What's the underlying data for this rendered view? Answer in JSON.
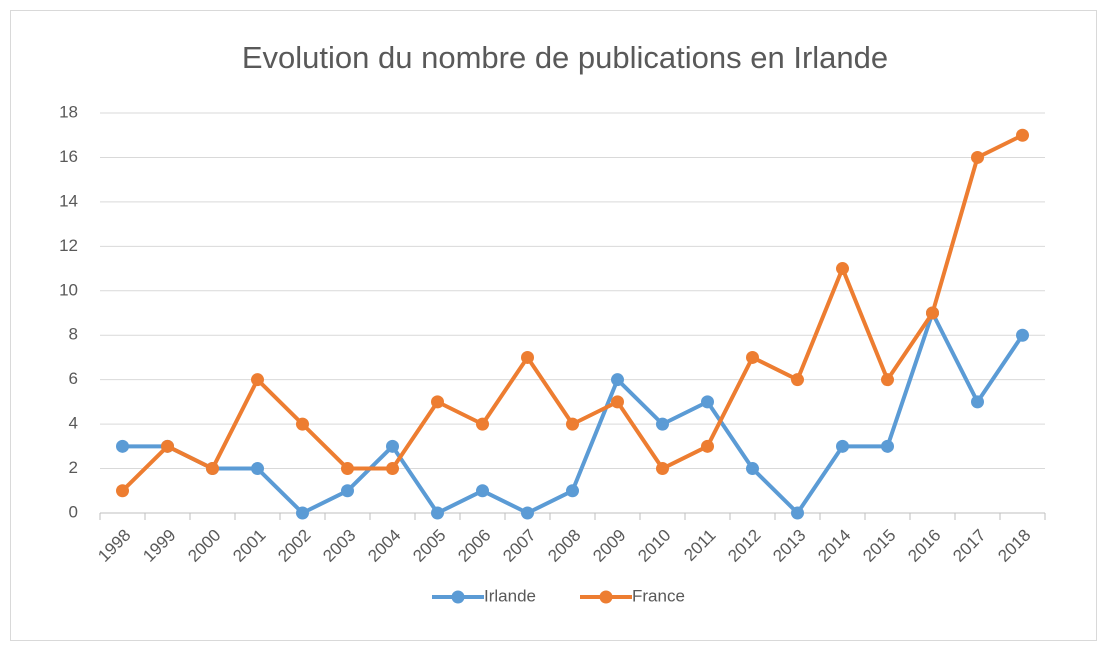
{
  "chart_data": {
    "type": "line",
    "title": "Evolution du nombre de publications en Irlande",
    "categories": [
      "1998",
      "1999",
      "2000",
      "2001",
      "2002",
      "2003",
      "2004",
      "2005",
      "2006",
      "2007",
      "2008",
      "2009",
      "2010",
      "2011",
      "2012",
      "2013",
      "2014",
      "2015",
      "2016",
      "2017",
      "2018"
    ],
    "series": [
      {
        "name": "Irlande",
        "color": "#5b9bd5",
        "values": [
          3,
          3,
          2,
          2,
          0,
          1,
          3,
          0,
          1,
          0,
          1,
          6,
          4,
          5,
          2,
          0,
          3,
          3,
          9,
          5,
          8
        ]
      },
      {
        "name": "France",
        "color": "#ed7d31",
        "values": [
          1,
          3,
          2,
          6,
          4,
          2,
          2,
          5,
          4,
          7,
          4,
          5,
          2,
          3,
          7,
          6,
          11,
          6,
          9,
          16,
          17
        ]
      }
    ],
    "ylim": [
      0,
      18
    ],
    "yticks": [
      0,
      2,
      4,
      6,
      8,
      10,
      12,
      14,
      16,
      18
    ],
    "grid": true,
    "legend": "bottom"
  }
}
